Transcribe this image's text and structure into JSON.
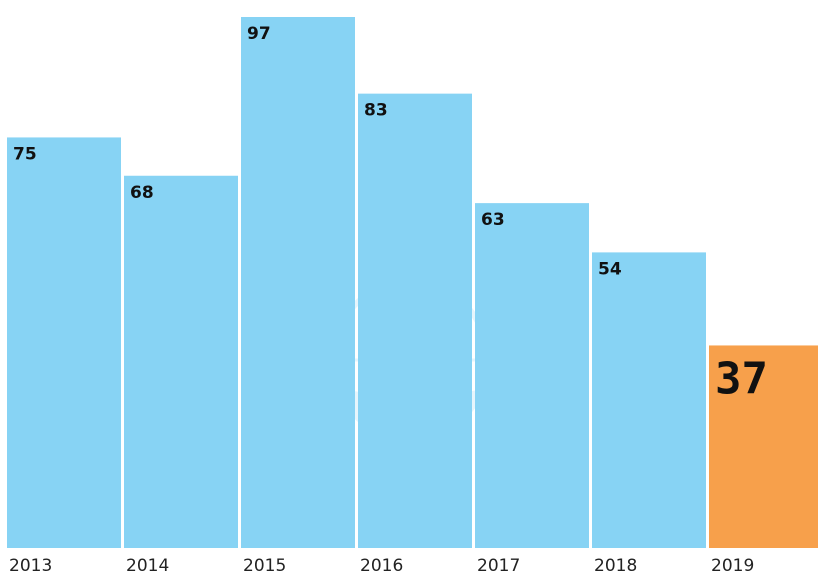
{
  "chart_data": {
    "type": "bar",
    "categories": [
      "2013",
      "2014",
      "2015",
      "2016",
      "2017",
      "2018",
      "2019"
    ],
    "values": [
      75,
      68,
      97,
      83,
      63,
      54,
      37
    ],
    "value_labels": [
      "75",
      "68",
      "97",
      "83",
      "63",
      "54",
      "37"
    ],
    "highlight_index": 6,
    "ylim": [
      0,
      100
    ],
    "grid": false,
    "legend": "none",
    "colors": {
      "bar": "#87d3f4",
      "highlight": "#f7a04b",
      "label": "#111111",
      "tick": "#222222"
    }
  }
}
